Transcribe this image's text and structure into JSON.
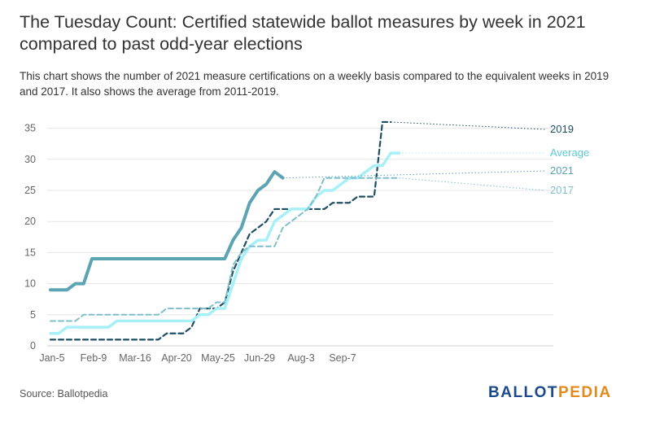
{
  "header": {
    "title": "The Tuesday Count: Certified statewide ballot measures by week in 2021 compared to past odd-year elections",
    "subtitle": "This chart shows the number of 2021 measure certifications on a weekly basis compared to the equivalent weeks in 2019 and 2017. It also shows the average from 2011-2019."
  },
  "footer": {
    "source": "Source: Ballotpedia",
    "logo_part1": "BALLOT",
    "logo_part2": "PEDIA"
  },
  "colors": {
    "s2021": "#5aa4b4",
    "s2019": "#1e4e63",
    "s2017": "#7fbfcc",
    "average": "#a8f0f8",
    "grid": "#e6e6e6"
  },
  "chart_data": {
    "type": "line",
    "ylim": [
      0,
      35
    ],
    "yticks": [
      0,
      5,
      10,
      15,
      20,
      25,
      30,
      35
    ],
    "x_tick_labels": [
      "Jan-5",
      "Feb-9",
      "Mar-16",
      "Apr-20",
      "May-25",
      "Jun-29",
      "Aug-3",
      "Sep-7"
    ],
    "x_tick_weeks": [
      0,
      5,
      10,
      15,
      20,
      25,
      30,
      35
    ],
    "weeks": 38,
    "series": [
      {
        "name": "2019",
        "style": "dashed",
        "values": [
          1,
          1,
          1,
          1,
          1,
          1,
          1,
          1,
          1,
          1,
          1,
          1,
          1,
          1,
          2,
          2,
          2,
          3,
          6,
          6,
          6,
          7,
          12,
          15,
          18,
          19,
          20,
          22,
          22,
          22,
          22,
          22,
          22,
          22,
          23,
          23,
          23,
          24,
          24,
          24,
          36,
          36
        ]
      },
      {
        "name": "Average",
        "style": "solid",
        "values": [
          2,
          2,
          3,
          3,
          3,
          3,
          3,
          3,
          4,
          4,
          4,
          4,
          4,
          4,
          4,
          4,
          4,
          4,
          5,
          5,
          6,
          6,
          10,
          14,
          16,
          17,
          17,
          20,
          21,
          22,
          22,
          22,
          24,
          25,
          25,
          26,
          27,
          27,
          28,
          29,
          29,
          31,
          31
        ]
      },
      {
        "name": "2021",
        "style": "solid-thick",
        "projection": 28.3,
        "values": [
          9,
          9,
          9,
          10,
          10,
          14,
          14,
          14,
          14,
          14,
          14,
          14,
          14,
          14,
          14,
          14,
          14,
          14,
          14,
          14,
          14,
          14,
          17,
          19,
          23,
          25,
          26,
          28,
          27
        ]
      },
      {
        "name": "2017",
        "style": "dashed",
        "projection": 25.5,
        "values": [
          4,
          4,
          4,
          4,
          5,
          5,
          5,
          5,
          5,
          5,
          5,
          5,
          5,
          5,
          6,
          6,
          6,
          6,
          6,
          6,
          7,
          7,
          13,
          15,
          16,
          16,
          16,
          16,
          19,
          20,
          21,
          22,
          24,
          27,
          27,
          27,
          27,
          27,
          27,
          27,
          27,
          27,
          27
        ]
      }
    ]
  }
}
